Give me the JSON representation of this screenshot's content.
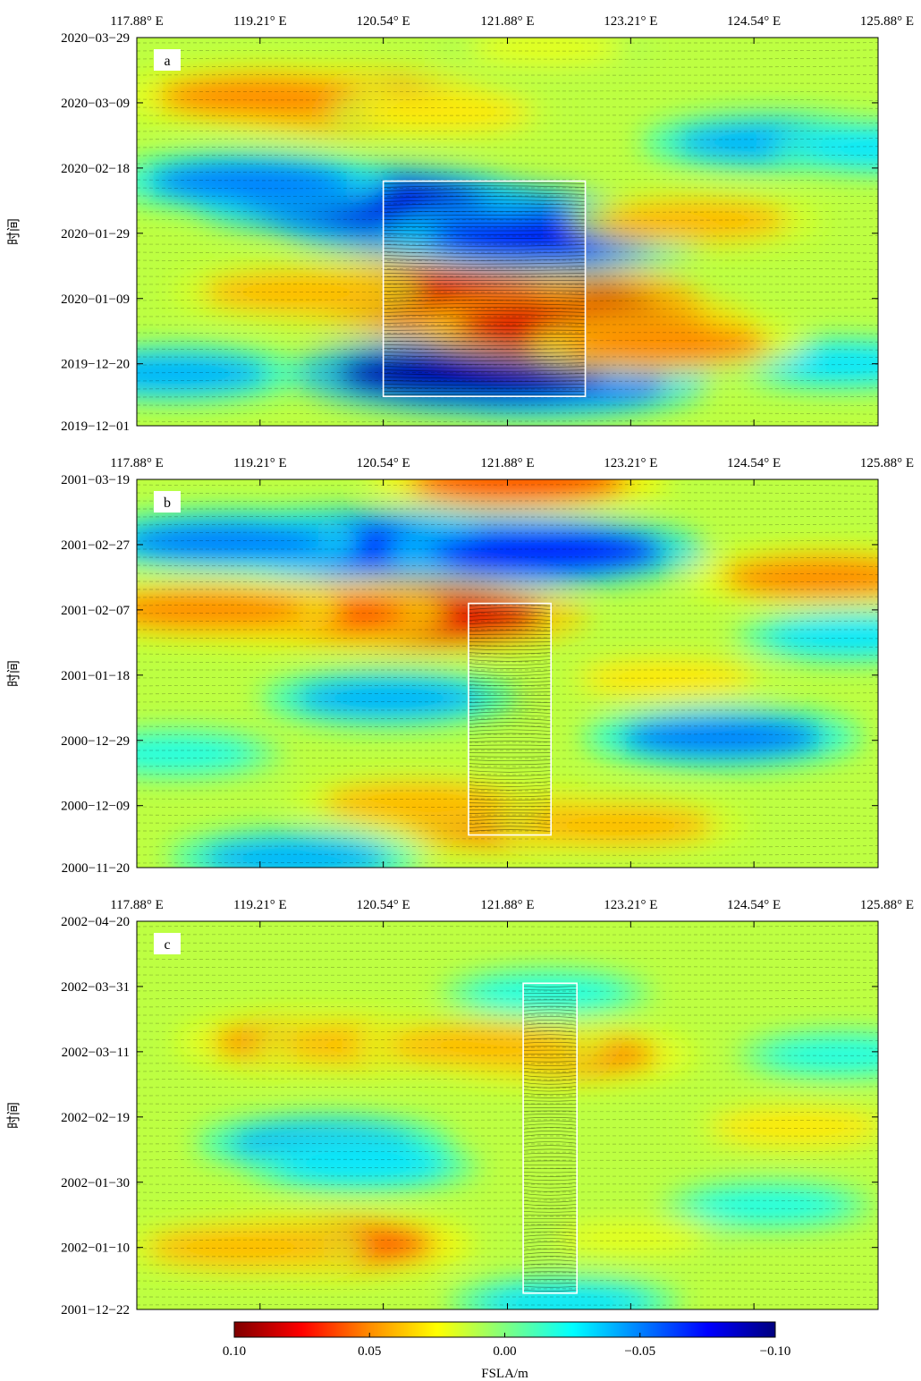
{
  "chart_data": [
    {
      "type": "heatmap",
      "panel_label": "a",
      "x_tick_labels": [
        "117.88° E",
        "119.21° E",
        "120.54° E",
        "121.88° E",
        "123.21° E",
        "124.54° E",
        "125.88° E"
      ],
      "x_ticks": [
        117.88,
        119.21,
        120.54,
        121.88,
        123.21,
        124.54,
        125.88
      ],
      "xlim": [
        117.88,
        125.88
      ],
      "y_tick_labels": [
        "2020−03−29",
        "2020−03−09",
        "2020−02−18",
        "2020−01−29",
        "2020−01−09",
        "2019−12−20",
        "2019−12−01"
      ],
      "y_ticks": [
        "2020-03-29",
        "2020-03-09",
        "2020-02-18",
        "2020-01-29",
        "2020-01-09",
        "2019-12-20",
        "2019-12-01"
      ],
      "ylim": [
        "2019-12-01",
        "2020-03-29"
      ],
      "ylabel": "时间",
      "highlight_box": {
        "lon": [
          120.54,
          122.72
        ],
        "time": [
          "2019-12-10",
          "2020-02-14"
        ]
      },
      "features": [
        {
          "lon": 123.0,
          "time": "2019-12-22",
          "value": -0.05
        },
        {
          "lon": 122.3,
          "time": "2019-12-14",
          "value": -0.07
        },
        {
          "lon": 121.5,
          "time": "2019-12-17",
          "value": -0.09
        },
        {
          "lon": 118.3,
          "time": "2019-12-17",
          "value": -0.04
        },
        {
          "lon": 125.5,
          "time": "2019-12-20",
          "value": -0.03
        },
        {
          "lon": 121.9,
          "time": "2020-01-08",
          "value": 0.1
        },
        {
          "lon": 120.9,
          "time": "2020-01-10",
          "value": 0.08
        },
        {
          "lon": 122.7,
          "time": "2020-01-01",
          "value": 0.08
        },
        {
          "lon": 123.6,
          "time": "2019-12-26",
          "value": 0.05
        },
        {
          "lon": 119.6,
          "time": "2020-01-11",
          "value": 0.04
        },
        {
          "lon": 121.3,
          "time": "2020-02-02",
          "value": -0.09
        },
        {
          "lon": 120.3,
          "time": "2020-02-08",
          "value": -0.08
        },
        {
          "lon": 122.3,
          "time": "2020-01-28",
          "value": -0.07
        },
        {
          "lon": 119.1,
          "time": "2020-02-14",
          "value": -0.05
        },
        {
          "lon": 123.9,
          "time": "2020-02-02",
          "value": 0.04
        },
        {
          "lon": 124.7,
          "time": "2020-02-26",
          "value": -0.04
        },
        {
          "lon": 126.0,
          "time": "2020-02-24",
          "value": -0.03
        },
        {
          "lon": 120.1,
          "time": "2020-03-09",
          "value": 0.07
        },
        {
          "lon": 119.2,
          "time": "2020-03-11",
          "value": 0.05
        },
        {
          "lon": 121.2,
          "time": "2020-03-06",
          "value": 0.03
        },
        {
          "lon": 122.3,
          "time": "2020-03-26",
          "value": 0.02
        }
      ]
    },
    {
      "type": "heatmap",
      "panel_label": "b",
      "x_tick_labels": [
        "117.88° E",
        "119.21° E",
        "120.54° E",
        "121.88° E",
        "123.21° E",
        "124.54° E",
        "125.88° E"
      ],
      "x_ticks": [
        117.88,
        119.21,
        120.54,
        121.88,
        123.21,
        124.54,
        125.88
      ],
      "xlim": [
        117.88,
        125.88
      ],
      "y_tick_labels": [
        "2001−03−19",
        "2001−02−27",
        "2001−02−07",
        "2001−01−18",
        "2000−12−29",
        "2000−12−09",
        "2000−11−20"
      ],
      "y_ticks": [
        "2001-03-19",
        "2001-02-27",
        "2001-02-07",
        "2001-01-18",
        "2000-12-29",
        "2000-12-09",
        "2000-11-20"
      ],
      "ylim": [
        "2000-11-20",
        "2001-03-19"
      ],
      "ylabel": "时间",
      "highlight_box": {
        "lon": [
          121.46,
          122.35
        ],
        "time": [
          "2000-11-30",
          "2001-02-09"
        ]
      },
      "features": [
        {
          "lon": 121.2,
          "time": "2001-02-25",
          "value": -0.1
        },
        {
          "lon": 120.1,
          "time": "2001-02-27",
          "value": -0.07
        },
        {
          "lon": 122.3,
          "time": "2001-02-25",
          "value": -0.07
        },
        {
          "lon": 118.8,
          "time": "2001-02-28",
          "value": -0.05
        },
        {
          "lon": 122.0,
          "time": "2001-03-19",
          "value": 0.06
        },
        {
          "lon": 120.9,
          "time": "2001-02-05",
          "value": 0.08
        },
        {
          "lon": 119.6,
          "time": "2001-02-06",
          "value": 0.06
        },
        {
          "lon": 118.6,
          "time": "2001-02-07",
          "value": 0.05
        },
        {
          "lon": 125.3,
          "time": "2001-02-17",
          "value": 0.05
        },
        {
          "lon": 120.6,
          "time": "2001-01-11",
          "value": -0.04
        },
        {
          "lon": 123.6,
          "time": "2001-01-17",
          "value": 0.03
        },
        {
          "lon": 125.6,
          "time": "2001-01-30",
          "value": -0.03
        },
        {
          "lon": 124.2,
          "time": "2000-12-30",
          "value": -0.05
        },
        {
          "lon": 121.9,
          "time": "2000-12-04",
          "value": 0.06
        },
        {
          "lon": 120.9,
          "time": "2000-12-10",
          "value": 0.04
        },
        {
          "lon": 123.1,
          "time": "2000-12-03",
          "value": 0.04
        },
        {
          "lon": 119.6,
          "time": "2000-11-23",
          "value": -0.04
        },
        {
          "lon": 118.3,
          "time": "2000-12-25",
          "value": -0.02
        }
      ]
    },
    {
      "type": "heatmap",
      "panel_label": "c",
      "x_tick_labels": [
        "117.88° E",
        "119.21° E",
        "120.54° E",
        "121.88° E",
        "123.21° E",
        "124.54° E",
        "125.88° E"
      ],
      "x_ticks": [
        117.88,
        119.21,
        120.54,
        121.88,
        123.21,
        124.54,
        125.88
      ],
      "xlim": [
        117.88,
        125.88
      ],
      "y_tick_labels": [
        "2002−04−20",
        "2002−03−31",
        "2002−03−11",
        "2002−02−19",
        "2002−01−30",
        "2002−01−10",
        "2001−12−22"
      ],
      "y_ticks": [
        "2002-04-20",
        "2002-03-31",
        "2002-03-11",
        "2002-02-19",
        "2002-01-30",
        "2002-01-10",
        "2001-12-22"
      ],
      "ylim": [
        "2001-12-22",
        "2002-04-20"
      ],
      "ylabel": "时间",
      "highlight_box": {
        "lon": [
          122.05,
          122.63
        ],
        "time": [
          "2001-12-27",
          "2002-04-01"
        ]
      },
      "features": [
        {
          "lon": 119.8,
          "time": "2002-03-14",
          "value": 0.05
        },
        {
          "lon": 120.5,
          "time": "2002-03-13",
          "value": 0.04
        },
        {
          "lon": 122.4,
          "time": "2002-03-10",
          "value": 0.05
        },
        {
          "lon": 121.6,
          "time": "2002-03-13",
          "value": 0.04
        },
        {
          "lon": 119.9,
          "time": "2002-02-11",
          "value": -0.04
        },
        {
          "lon": 120.3,
          "time": "2002-02-04",
          "value": -0.03
        },
        {
          "lon": 122.3,
          "time": "2002-03-29",
          "value": -0.02
        },
        {
          "lon": 125.0,
          "time": "2002-02-16",
          "value": 0.03
        },
        {
          "lon": 125.5,
          "time": "2002-03-10",
          "value": -0.02
        },
        {
          "lon": 124.7,
          "time": "2002-01-23",
          "value": -0.02
        },
        {
          "lon": 119.9,
          "time": "2002-01-11",
          "value": 0.06
        },
        {
          "lon": 119.0,
          "time": "2002-01-10",
          "value": 0.04
        },
        {
          "lon": 123.2,
          "time": "2002-01-13",
          "value": 0.02
        },
        {
          "lon": 122.5,
          "time": "2001-12-24",
          "value": -0.03
        }
      ]
    }
  ],
  "colorbar": {
    "label": "FSLA/m",
    "tick_labels": [
      "0.10",
      "0.05",
      "0.00",
      "−0.05",
      "−0.10"
    ],
    "ticks": [
      0.1,
      0.05,
      0.0,
      -0.05,
      -0.1
    ],
    "range": [
      0.1,
      -0.1
    ],
    "colors": [
      "#7f0000",
      "#ff0000",
      "#ff8c00",
      "#ffff00",
      "#80ff7f",
      "#00ffff",
      "#0080ff",
      "#0000ff",
      "#00007f"
    ]
  }
}
